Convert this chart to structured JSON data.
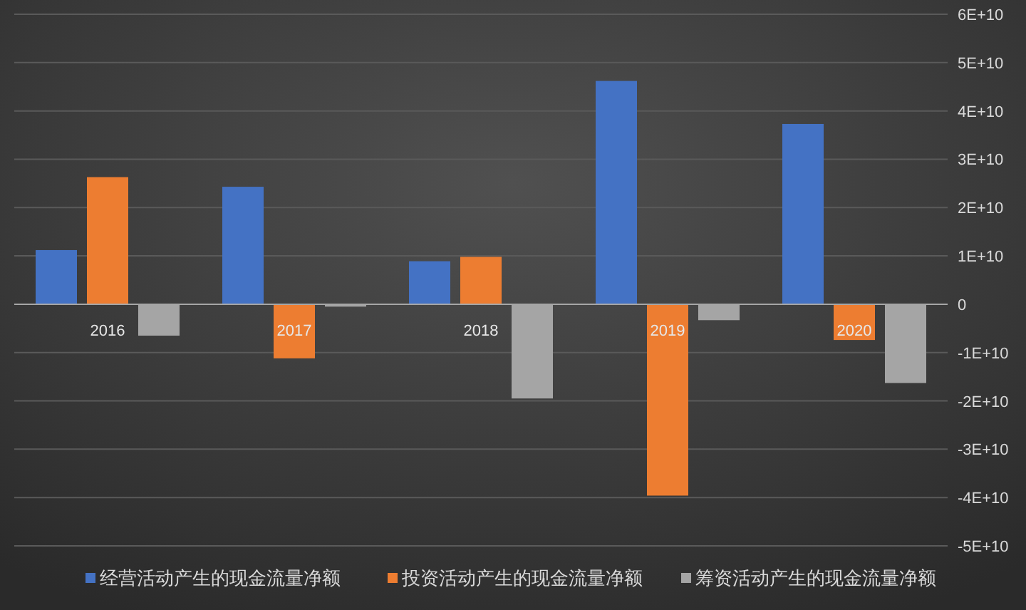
{
  "chart_data": {
    "type": "bar",
    "categories": [
      "2016",
      "2017",
      "2018",
      "2019",
      "2020"
    ],
    "series": [
      {
        "name": "经营活动产生的现金流量净额",
        "color": "#4472c4",
        "values": [
          11200000000,
          24300000000,
          8900000000,
          46200000000,
          37300000000
        ]
      },
      {
        "name": "投资活动产生的现金流量净额",
        "color": "#ed7d31",
        "values": [
          26300000000,
          -11200000000,
          9800000000,
          -39600000000,
          -7400000000
        ]
      },
      {
        "name": "筹资活动产生的现金流量净额",
        "color": "#a5a5a5",
        "values": [
          -6500000000,
          -500000000,
          -19500000000,
          -3300000000,
          -16300000000
        ]
      }
    ],
    "ylim": [
      -50000000000,
      60000000000
    ],
    "yticks": [
      {
        "value": -50000000000,
        "label": "-5E+10"
      },
      {
        "value": -40000000000,
        "label": "-4E+10"
      },
      {
        "value": -30000000000,
        "label": "-3E+10"
      },
      {
        "value": -20000000000,
        "label": "-2E+10"
      },
      {
        "value": -10000000000,
        "label": "-1E+10"
      },
      0,
      {
        "value": 10000000000,
        "label": "1E+10"
      },
      {
        "value": 20000000000,
        "label": "2E+10"
      },
      {
        "value": 30000000000,
        "label": "3E+10"
      },
      {
        "value": 40000000000,
        "label": "4E+10"
      },
      {
        "value": 50000000000,
        "label": "5E+10"
      },
      {
        "value": 60000000000,
        "label": "6E+10"
      }
    ],
    "grid": "y",
    "legend": "bottom"
  }
}
